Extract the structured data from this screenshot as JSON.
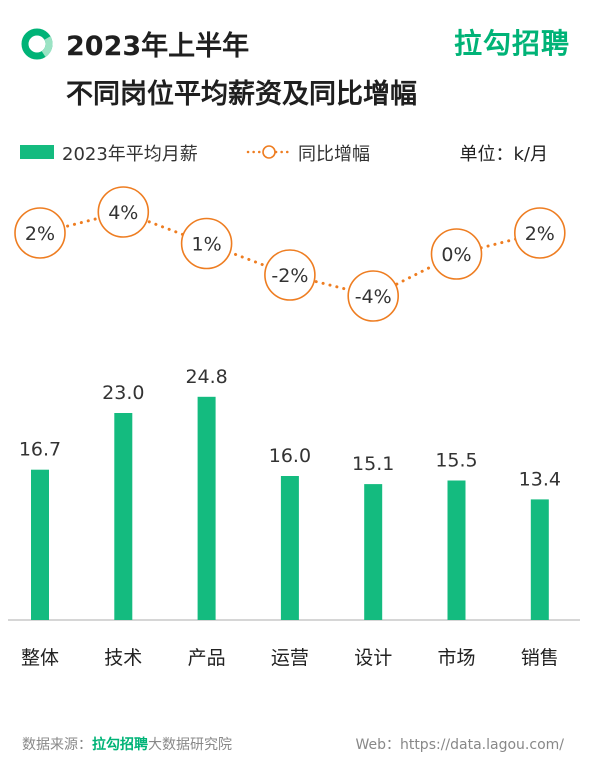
{
  "header": {
    "title_line1": "2023年上半年",
    "title_line2": "不同岗位平均薪资及同比增幅",
    "brand": "拉勾招聘"
  },
  "legend": {
    "bar_label": "2023年平均月薪",
    "line_label": "同比增幅",
    "unit": "单位：k/月"
  },
  "colors": {
    "bar": "#14bb7f",
    "line": "#ee7d21",
    "brand": "#00b377"
  },
  "chart_data": {
    "type": "bar",
    "categories": [
      "整体",
      "技术",
      "产品",
      "运营",
      "设计",
      "市场",
      "销售"
    ],
    "series": [
      {
        "name": "2023年平均月薪",
        "type": "bar",
        "values": [
          16.7,
          23.0,
          24.8,
          16.0,
          15.1,
          15.5,
          13.4
        ],
        "labels": [
          "16.7",
          "23.0",
          "24.8",
          "16.0",
          "15.1",
          "15.5",
          "13.4"
        ]
      },
      {
        "name": "同比增幅",
        "type": "line",
        "style": "dotted",
        "marker": "circle",
        "values": [
          2,
          4,
          1,
          -2,
          -4,
          0,
          2
        ],
        "labels": [
          "2%",
          "4%",
          "1%",
          "-2%",
          "-4%",
          "0%",
          "2%"
        ]
      }
    ],
    "ylabel": "k/月",
    "ylim": [
      0,
      28
    ],
    "growth_ylim": [
      -4,
      4
    ],
    "grid": false
  },
  "footer": {
    "source_prefix": "数据来源：",
    "source_brand": "拉勾招聘",
    "source_suffix": "大数据研究院",
    "web": "Web：https://data.lagou.com/"
  }
}
